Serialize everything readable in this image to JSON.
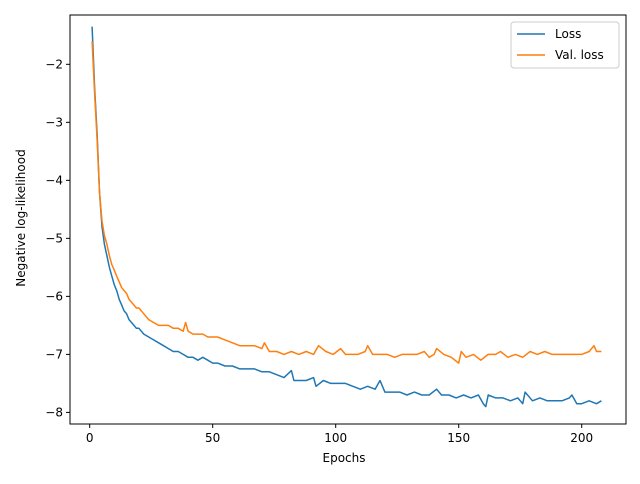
{
  "chart_data": {
    "type": "line",
    "title": "",
    "xlabel": "Epochs",
    "ylabel": "Negative log-likelihood",
    "xlim": [
      -8,
      218
    ],
    "ylim": [
      -8.2,
      -1.15
    ],
    "xticks": [
      0,
      50,
      100,
      150,
      200
    ],
    "yticks": [
      -8,
      -7,
      -6,
      -5,
      -4,
      -3,
      -2
    ],
    "grid": false,
    "legend_position": "top-right",
    "series": [
      {
        "name": "Loss",
        "color": "#1f77b4",
        "x": [
          1,
          2,
          3,
          4,
          5,
          6,
          7,
          8,
          9,
          10,
          11,
          12,
          13,
          14,
          15,
          16,
          17,
          18,
          19,
          20,
          22,
          24,
          26,
          28,
          30,
          32,
          34,
          36,
          38,
          40,
          42,
          44,
          46,
          48,
          50,
          52,
          55,
          58,
          61,
          64,
          67,
          70,
          73,
          76,
          79,
          82,
          83,
          85,
          88,
          91,
          92,
          95,
          98,
          101,
          104,
          107,
          110,
          113,
          116,
          118,
          120,
          123,
          126,
          129,
          132,
          135,
          138,
          141,
          143,
          146,
          149,
          152,
          155,
          158,
          160,
          161,
          162,
          165,
          168,
          171,
          174,
          176,
          177,
          180,
          183,
          186,
          189,
          192,
          195,
          196,
          198,
          200,
          203,
          206,
          208
        ],
        "y": [
          -1.35,
          -2.4,
          -3.2,
          -4.2,
          -4.8,
          -5.1,
          -5.3,
          -5.5,
          -5.65,
          -5.8,
          -5.9,
          -6.05,
          -6.15,
          -6.25,
          -6.3,
          -6.4,
          -6.45,
          -6.5,
          -6.55,
          -6.55,
          -6.65,
          -6.7,
          -6.75,
          -6.8,
          -6.85,
          -6.9,
          -6.95,
          -6.95,
          -7.0,
          -7.05,
          -7.05,
          -7.1,
          -7.05,
          -7.1,
          -7.15,
          -7.15,
          -7.2,
          -7.2,
          -7.25,
          -7.25,
          -7.25,
          -7.3,
          -7.3,
          -7.35,
          -7.4,
          -7.28,
          -7.45,
          -7.45,
          -7.45,
          -7.4,
          -7.55,
          -7.45,
          -7.5,
          -7.5,
          -7.5,
          -7.55,
          -7.6,
          -7.55,
          -7.6,
          -7.45,
          -7.65,
          -7.65,
          -7.65,
          -7.7,
          -7.65,
          -7.7,
          -7.7,
          -7.6,
          -7.7,
          -7.7,
          -7.75,
          -7.7,
          -7.75,
          -7.7,
          -7.85,
          -7.9,
          -7.7,
          -7.75,
          -7.75,
          -7.8,
          -7.75,
          -7.85,
          -7.65,
          -7.8,
          -7.75,
          -7.8,
          -7.8,
          -7.8,
          -7.75,
          -7.7,
          -7.85,
          -7.85,
          -7.8,
          -7.85,
          -7.8
        ]
      },
      {
        "name": "Val. loss",
        "color": "#ff7f0e",
        "x": [
          1,
          2,
          3,
          4,
          5,
          6,
          7,
          8,
          9,
          10,
          11,
          12,
          13,
          14,
          15,
          16,
          17,
          18,
          19,
          20,
          22,
          24,
          26,
          28,
          30,
          32,
          34,
          36,
          38,
          39,
          40,
          42,
          44,
          46,
          48,
          50,
          52,
          55,
          58,
          61,
          64,
          67,
          70,
          71,
          73,
          76,
          79,
          82,
          85,
          88,
          91,
          93,
          96,
          99,
          102,
          104,
          106,
          109,
          112,
          113,
          115,
          118,
          121,
          124,
          127,
          130,
          133,
          136,
          138,
          140,
          141,
          144,
          147,
          150,
          151,
          153,
          156,
          159,
          162,
          165,
          167,
          170,
          173,
          176,
          179,
          182,
          185,
          188,
          191,
          194,
          197,
          200,
          203,
          205,
          206,
          208
        ],
        "y": [
          -1.6,
          -2.5,
          -3.3,
          -4.2,
          -4.7,
          -4.95,
          -5.1,
          -5.3,
          -5.45,
          -5.55,
          -5.65,
          -5.75,
          -5.85,
          -5.9,
          -5.95,
          -6.05,
          -6.1,
          -6.15,
          -6.2,
          -6.2,
          -6.3,
          -6.4,
          -6.45,
          -6.5,
          -6.5,
          -6.5,
          -6.55,
          -6.55,
          -6.6,
          -6.45,
          -6.6,
          -6.65,
          -6.65,
          -6.65,
          -6.7,
          -6.7,
          -6.7,
          -6.75,
          -6.8,
          -6.85,
          -6.85,
          -6.85,
          -6.9,
          -6.8,
          -6.95,
          -6.95,
          -7.0,
          -6.95,
          -7.0,
          -6.95,
          -7.0,
          -6.85,
          -6.95,
          -7.0,
          -6.9,
          -7.0,
          -7.0,
          -7.0,
          -6.95,
          -6.85,
          -7.0,
          -7.0,
          -7.0,
          -7.05,
          -7.0,
          -7.0,
          -7.0,
          -6.95,
          -7.05,
          -7.0,
          -6.9,
          -7.0,
          -7.05,
          -7.15,
          -6.95,
          -7.05,
          -7.0,
          -7.1,
          -7.0,
          -7.0,
          -6.95,
          -7.05,
          -7.0,
          -7.05,
          -6.95,
          -7.0,
          -6.95,
          -7.0,
          -7.0,
          -7.0,
          -7.0,
          -7.0,
          -6.95,
          -6.85,
          -6.95,
          -6.95
        ]
      }
    ]
  }
}
